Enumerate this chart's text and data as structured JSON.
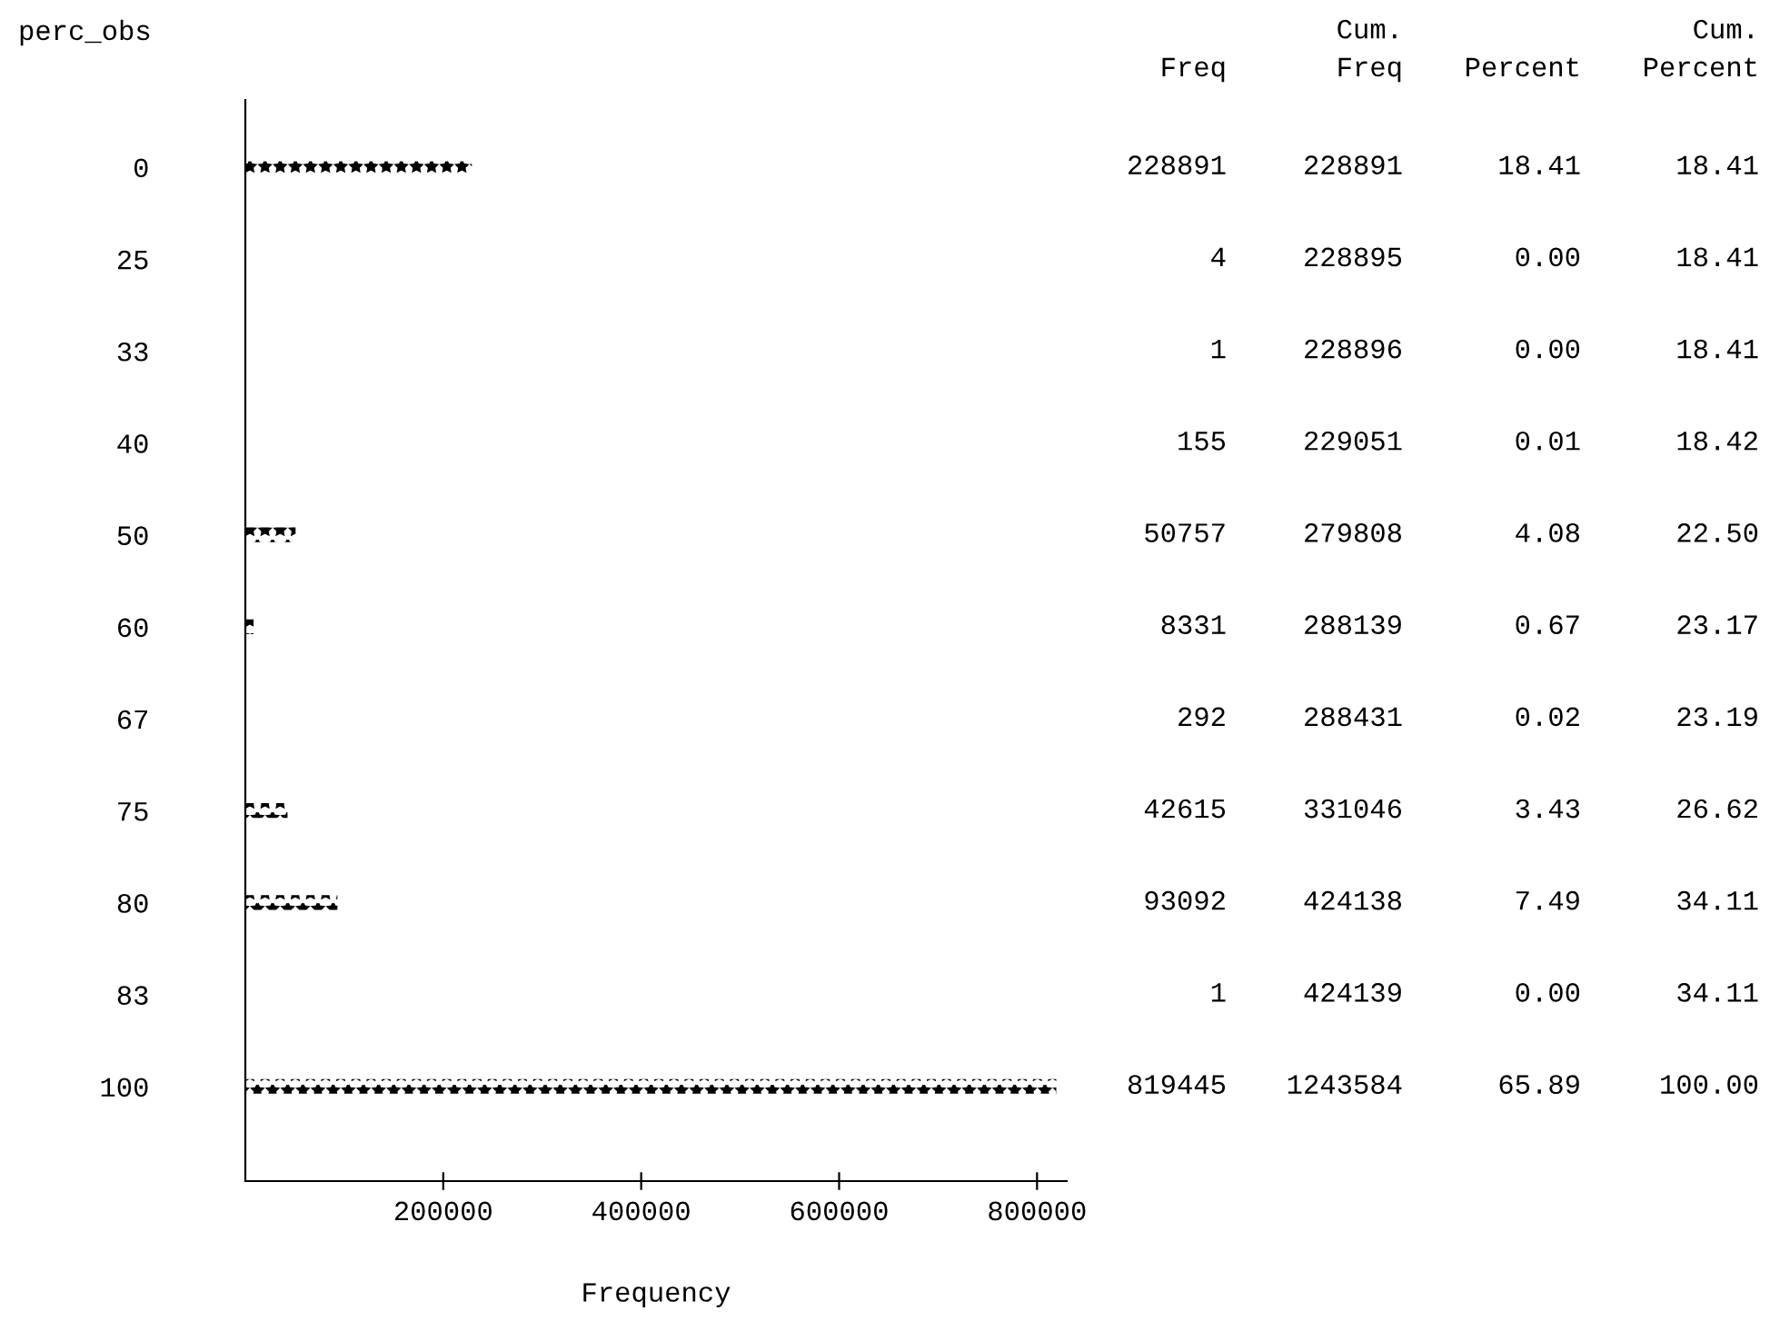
{
  "chart_data": {
    "type": "bar",
    "orientation": "horizontal",
    "xlabel": "Frequency",
    "ylabel": "perc_obs",
    "categories": [
      "0",
      "25",
      "33",
      "40",
      "50",
      "60",
      "67",
      "75",
      "80",
      "83",
      "100"
    ],
    "values": [
      228891,
      4,
      1,
      155,
      50757,
      8331,
      292,
      42615,
      93092,
      1,
      819445
    ],
    "color": "#000000",
    "data_labels": true,
    "grid": false,
    "xlim": [
      0,
      830000
    ],
    "xticks": [
      200000,
      400000,
      600000,
      800000
    ],
    "annotations": [
      "Freq",
      "Cum.\nFreq",
      "Percent",
      "Cum.\nPercent",
      "228891",
      "18.41",
      "18.41",
      "228895",
      "0.00",
      "18.41",
      "228896",
      "0.00",
      "18.41",
      "229051",
      "0.01",
      "18.42",
      "279808",
      "4.08",
      "22.50",
      "288139",
      "0.67",
      "23.17",
      "288431",
      "0.02",
      "23.19",
      "331046",
      "3.43",
      "26.62",
      "424138",
      "7.49",
      "34.11",
      "424139",
      "0.00",
      "34.11",
      "1243584",
      "65.89",
      "100.00"
    ]
  }
}
